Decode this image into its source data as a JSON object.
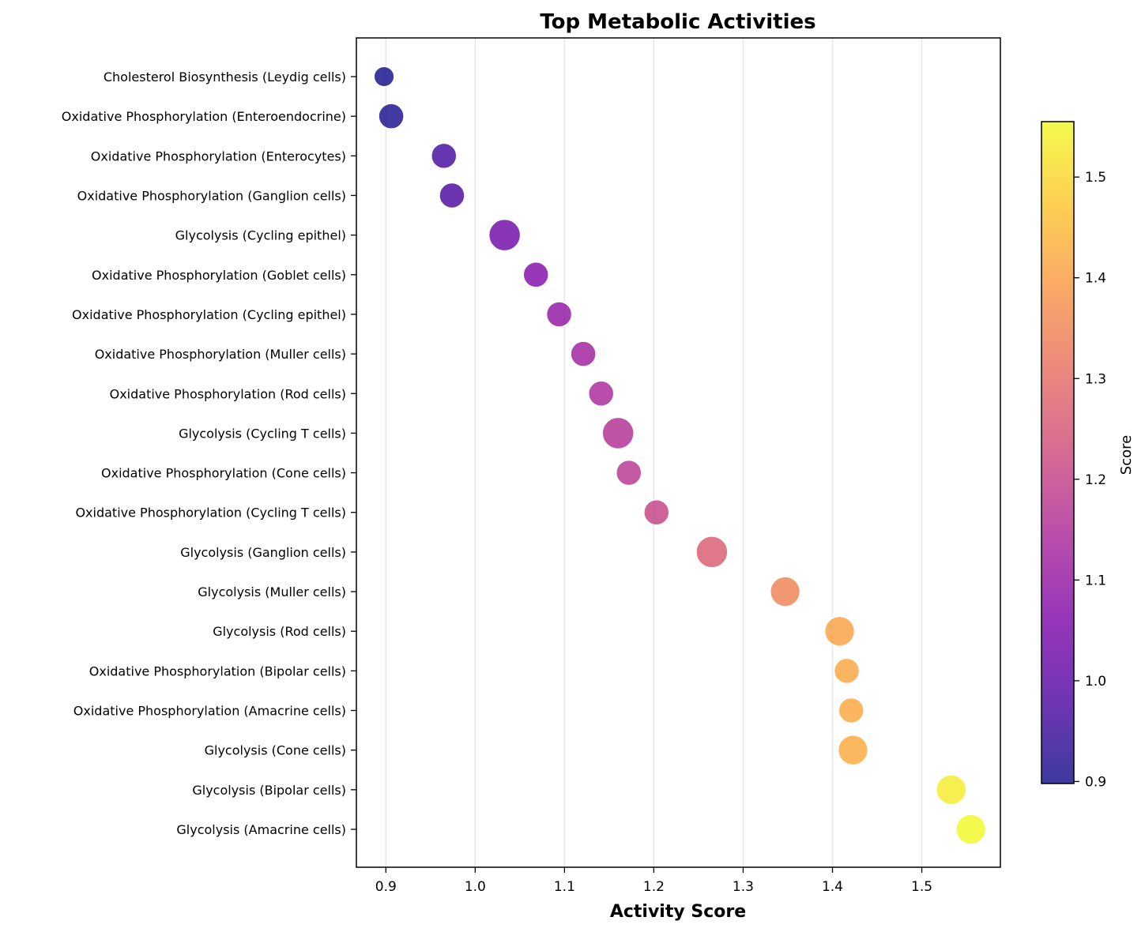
{
  "chart_data": {
    "type": "scatter",
    "title": "Top Metabolic Activities",
    "xlabel": "Activity Score",
    "ylabel": "",
    "xlim": [
      0.867,
      1.588
    ],
    "xticks": [
      0.9,
      1.0,
      1.1,
      1.2,
      1.3,
      1.4,
      1.5
    ],
    "xtick_labels": [
      "0.9",
      "1.0",
      "1.1",
      "1.2",
      "1.3",
      "1.4",
      "1.5"
    ],
    "grid": "vertical-x",
    "colormap": "plasma",
    "colorbar": {
      "label": "Score",
      "range": [
        0.898,
        1.555
      ],
      "ticks": [
        0.9,
        1.0,
        1.1,
        1.2,
        1.3,
        1.4,
        1.5
      ],
      "tick_labels": [
        "0.9",
        "1.0",
        "1.1",
        "1.2",
        "1.3",
        "1.4",
        "1.5"
      ]
    },
    "points": [
      {
        "label": "Cholesterol Biosynthesis (Leydig cells)",
        "value": 0.898,
        "size": 0.8
      },
      {
        "label": "Oxidative Phosphorylation (Enteroendocrine)",
        "value": 0.906,
        "size": 1.0
      },
      {
        "label": "Oxidative Phosphorylation (Enterocytes)",
        "value": 0.965,
        "size": 1.0
      },
      {
        "label": "Oxidative Phosphorylation (Ganglion cells)",
        "value": 0.974,
        "size": 1.0
      },
      {
        "label": "Glycolysis (Cycling epithel)",
        "value": 1.033,
        "size": 1.25
      },
      {
        "label": "Oxidative Phosphorylation (Goblet cells)",
        "value": 1.068,
        "size": 1.0
      },
      {
        "label": "Oxidative Phosphorylation (Cycling epithel)",
        "value": 1.094,
        "size": 1.0
      },
      {
        "label": "Oxidative Phosphorylation (Muller cells)",
        "value": 1.121,
        "size": 1.0
      },
      {
        "label": "Oxidative Phosphorylation (Rod cells)",
        "value": 1.141,
        "size": 1.0
      },
      {
        "label": "Glycolysis (Cycling T cells)",
        "value": 1.16,
        "size": 1.25
      },
      {
        "label": "Oxidative Phosphorylation (Cone cells)",
        "value": 1.172,
        "size": 1.0
      },
      {
        "label": "Oxidative Phosphorylation (Cycling T cells)",
        "value": 1.203,
        "size": 1.0
      },
      {
        "label": "Glycolysis (Ganglion cells)",
        "value": 1.265,
        "size": 1.25
      },
      {
        "label": "Glycolysis (Muller cells)",
        "value": 1.347,
        "size": 1.18
      },
      {
        "label": "Glycolysis (Rod cells)",
        "value": 1.408,
        "size": 1.18
      },
      {
        "label": "Oxidative Phosphorylation (Bipolar cells)",
        "value": 1.416,
        "size": 1.0
      },
      {
        "label": "Oxidative Phosphorylation (Amacrine cells)",
        "value": 1.421,
        "size": 1.0
      },
      {
        "label": "Glycolysis (Cone cells)",
        "value": 1.423,
        "size": 1.18
      },
      {
        "label": "Glycolysis (Bipolar cells)",
        "value": 1.533,
        "size": 1.18
      },
      {
        "label": "Glycolysis (Amacrine cells)",
        "value": 1.555,
        "size": 1.18
      }
    ]
  }
}
